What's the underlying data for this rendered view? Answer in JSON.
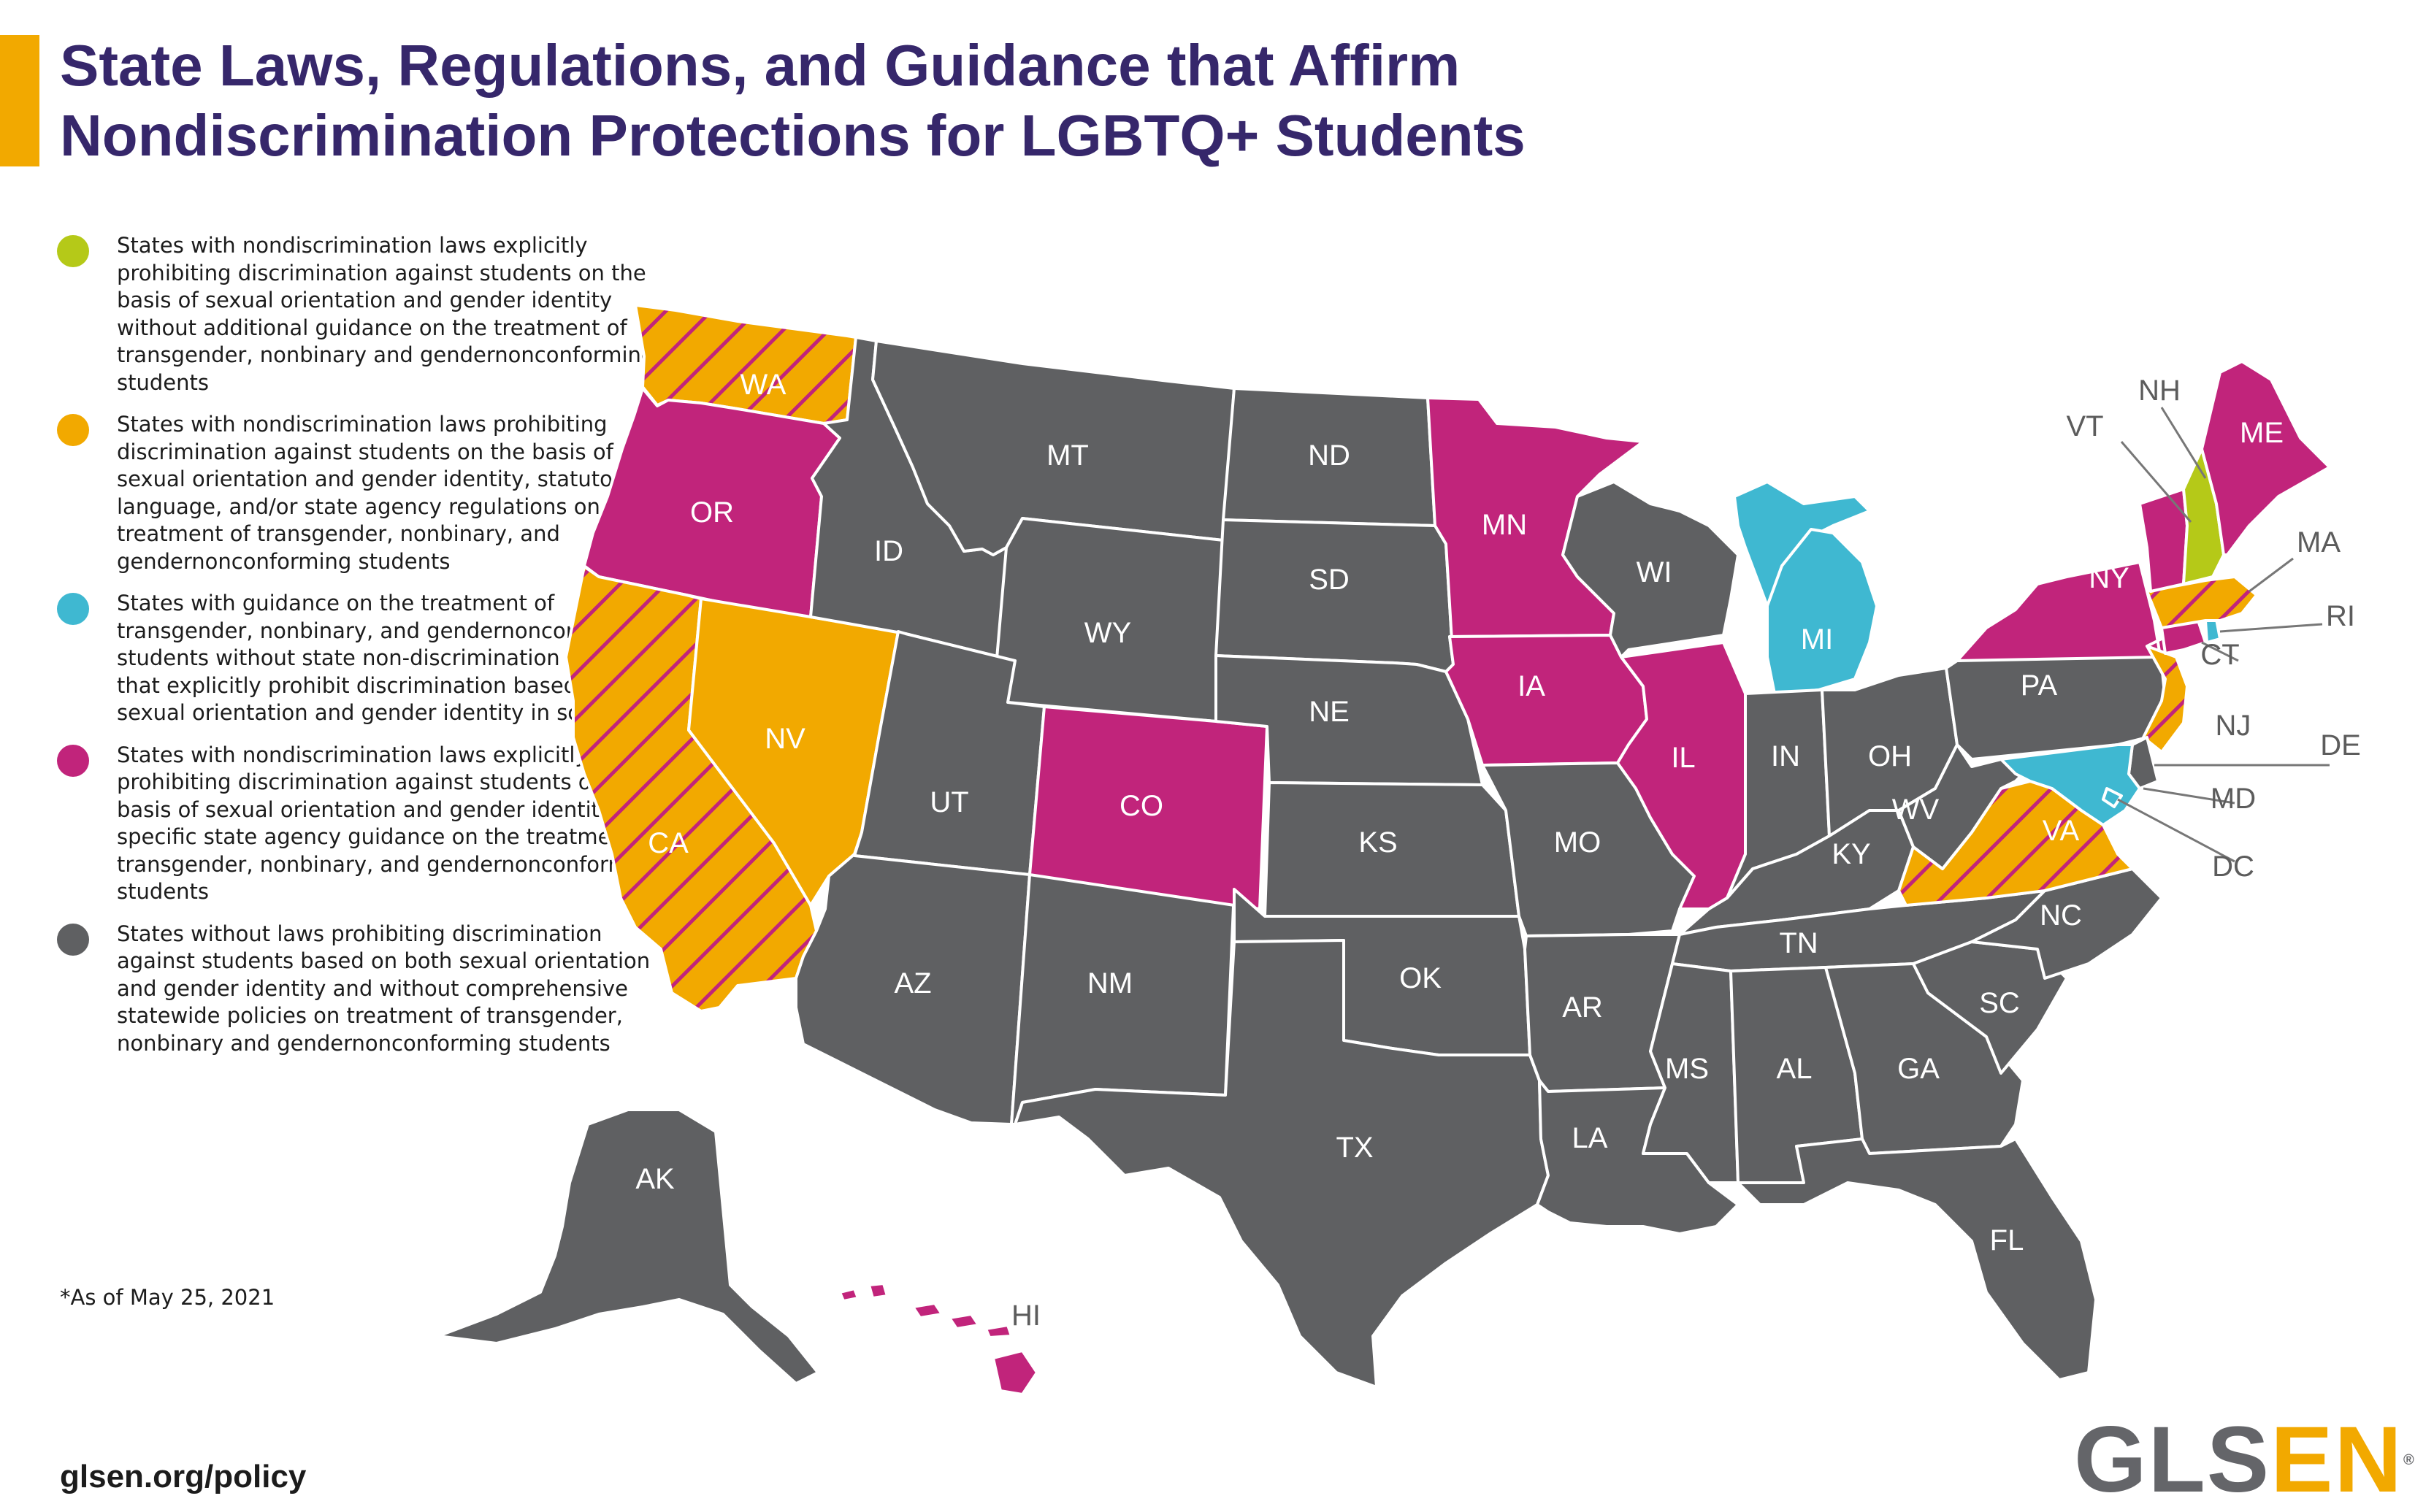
{
  "title": {
    "line1": "State Laws, Regulations, and Guidance that Affirm",
    "line2": "Nondiscrimination Protections for LGBTQ+ Students"
  },
  "colors": {
    "title": "#36276b",
    "accent_bar": "#f2a900",
    "green": "#b5c918",
    "orange": "#f2a900",
    "teal": "#3fb8d1",
    "magenta": "#c1247b",
    "gray": "#5f6062",
    "hatch": "#c1247b"
  },
  "legend": [
    {
      "color": "#b5c918",
      "text": "States with nondiscrimination laws explicitly prohibiting discrimination against students on the basis of sexual orientation and gender identity without additional guidance on the treatment of transgender, nonbinary and gendernonconforming students"
    },
    {
      "color": "#f2a900",
      "text": "States with nondiscrimination laws prohibiting discrimination against students on the basis of sexual orientation and gender identity, statutory language, and/or state agency regulations on the treatment of transgender, nonbinary, and gendernonconforming students"
    },
    {
      "color": "#3fb8d1",
      "text": "States with guidance on the treatment of transgender, nonbinary, and gendernonconforming students without state non-discrimination laws that explicitly prohibit discrimination based on sexual orientation and gender identity in schools"
    },
    {
      "color": "#c1247b",
      "text": "States with nondiscrimination laws explicitly prohibiting discrimination against students on the basis of sexual orientation and gender identity and specific state agency guidance on the treatment of transgender, nonbinary, and gendernonconforming students"
    },
    {
      "color": "#5f6062",
      "text": "States without laws prohibiting discrimination against students based on both sexual orientation and gender identity and without comprehensive statewide policies on treatment of transgender, nonbinary and gendernonconforming students"
    }
  ],
  "footnote": "*As of May 25, 2021",
  "url": "glsen.org/policy",
  "logo": {
    "gl": "GLS",
    "en": "EN",
    "mark": "®"
  },
  "map": {
    "states": [
      {
        "code": "WA",
        "category": "orange-hatched"
      },
      {
        "code": "OR",
        "category": "magenta"
      },
      {
        "code": "CA",
        "category": "orange-hatched"
      },
      {
        "code": "NV",
        "category": "orange"
      },
      {
        "code": "ID",
        "category": "gray"
      },
      {
        "code": "MT",
        "category": "gray"
      },
      {
        "code": "WY",
        "category": "gray"
      },
      {
        "code": "UT",
        "category": "gray"
      },
      {
        "code": "AZ",
        "category": "gray"
      },
      {
        "code": "NM",
        "category": "gray"
      },
      {
        "code": "CO",
        "category": "magenta"
      },
      {
        "code": "ND",
        "category": "gray"
      },
      {
        "code": "SD",
        "category": "gray"
      },
      {
        "code": "NE",
        "category": "gray"
      },
      {
        "code": "KS",
        "category": "gray"
      },
      {
        "code": "OK",
        "category": "gray"
      },
      {
        "code": "TX",
        "category": "gray"
      },
      {
        "code": "MN",
        "category": "magenta"
      },
      {
        "code": "IA",
        "category": "magenta"
      },
      {
        "code": "MO",
        "category": "gray"
      },
      {
        "code": "AR",
        "category": "gray"
      },
      {
        "code": "LA",
        "category": "gray"
      },
      {
        "code": "WI",
        "category": "gray"
      },
      {
        "code": "IL",
        "category": "magenta"
      },
      {
        "code": "MI",
        "category": "teal"
      },
      {
        "code": "IN",
        "category": "gray"
      },
      {
        "code": "OH",
        "category": "gray"
      },
      {
        "code": "KY",
        "category": "gray"
      },
      {
        "code": "TN",
        "category": "gray"
      },
      {
        "code": "MS",
        "category": "gray"
      },
      {
        "code": "AL",
        "category": "gray"
      },
      {
        "code": "GA",
        "category": "gray"
      },
      {
        "code": "FL",
        "category": "gray"
      },
      {
        "code": "SC",
        "category": "gray"
      },
      {
        "code": "NC",
        "category": "gray"
      },
      {
        "code": "VA",
        "category": "orange-hatched"
      },
      {
        "code": "WV",
        "category": "gray"
      },
      {
        "code": "PA",
        "category": "gray"
      },
      {
        "code": "NY",
        "category": "magenta"
      },
      {
        "code": "NJ",
        "category": "orange-hatched"
      },
      {
        "code": "DE",
        "category": "gray"
      },
      {
        "code": "MD",
        "category": "teal"
      },
      {
        "code": "DC",
        "category": "teal"
      },
      {
        "code": "CT",
        "category": "magenta"
      },
      {
        "code": "RI",
        "category": "teal"
      },
      {
        "code": "MA",
        "category": "orange-hatched"
      },
      {
        "code": "VT",
        "category": "magenta"
      },
      {
        "code": "NH",
        "category": "green"
      },
      {
        "code": "ME",
        "category": "magenta"
      },
      {
        "code": "AK",
        "category": "gray"
      },
      {
        "code": "HI",
        "category": "magenta"
      }
    ]
  }
}
